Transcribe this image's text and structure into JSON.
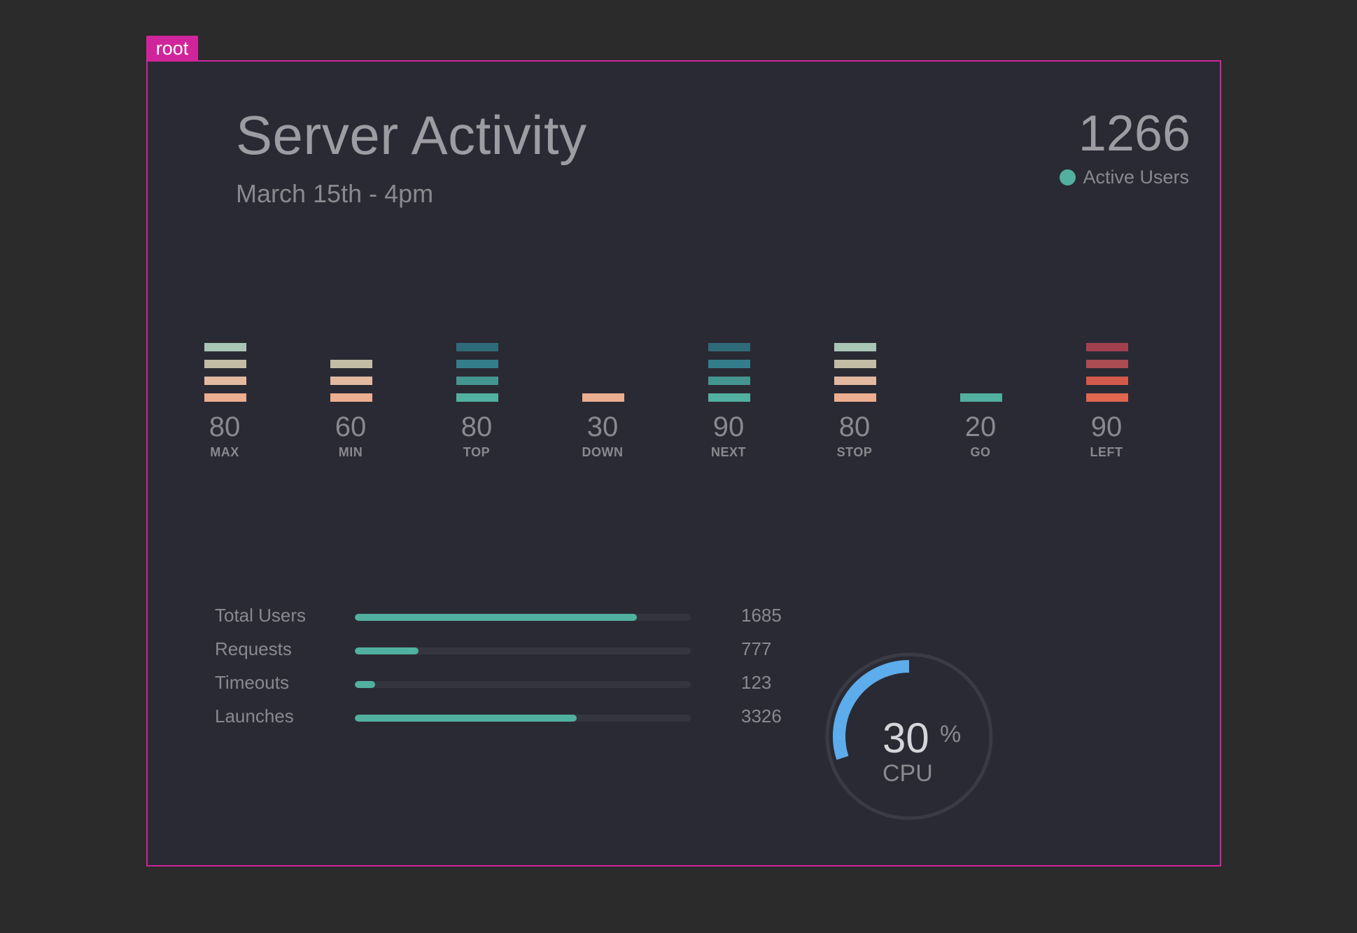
{
  "overlay": {
    "tag": "root"
  },
  "header": {
    "title": "Server Activity",
    "subtitle": "March 15th - 4pm",
    "active_count": "1266",
    "active_label": "Active Users",
    "active_color": "#52b0a0"
  },
  "stacks": [
    {
      "value": "80",
      "label": "MAX",
      "segments": [
        "#a9c5b5",
        "#c3bda5",
        "#e2b9a0",
        "#ecae90"
      ]
    },
    {
      "value": "60",
      "label": "MIN",
      "segments": [
        "#c3bda5",
        "#e2b9a0",
        "#ecae90"
      ]
    },
    {
      "value": "80",
      "label": "TOP",
      "segments": [
        "#2f6a78",
        "#347e8c",
        "#44958f",
        "#52b0a0"
      ]
    },
    {
      "value": "30",
      "label": "DOWN",
      "segments": [
        "#ecae90"
      ]
    },
    {
      "value": "90",
      "label": "NEXT",
      "segments": [
        "#2f6a78",
        "#347e8c",
        "#44958f",
        "#52b0a0"
      ]
    },
    {
      "value": "80",
      "label": "STOP",
      "segments": [
        "#a9c5b5",
        "#c3bda5",
        "#e2b9a0",
        "#ecae90"
      ]
    },
    {
      "value": "20",
      "label": "GO",
      "segments": [
        "#52b0a0"
      ]
    },
    {
      "value": "90",
      "label": "LEFT",
      "segments": [
        "#a1414f",
        "#ac4c53",
        "#d25a4c",
        "#e0664d"
      ]
    }
  ],
  "metrics": [
    {
      "label": "Total Users",
      "value": "1685",
      "fill_pct": 84
    },
    {
      "label": "Requests",
      "value": "777",
      "fill_pct": 19
    },
    {
      "label": "Timeouts",
      "value": "123",
      "fill_pct": 6
    },
    {
      "label": "Launches",
      "value": "3326",
      "fill_pct": 66
    }
  ],
  "gauge": {
    "value": "30",
    "unit": "%",
    "label": "CPU",
    "percent": 30,
    "color": "#5dacec",
    "track_color": "#3b3b47"
  }
}
